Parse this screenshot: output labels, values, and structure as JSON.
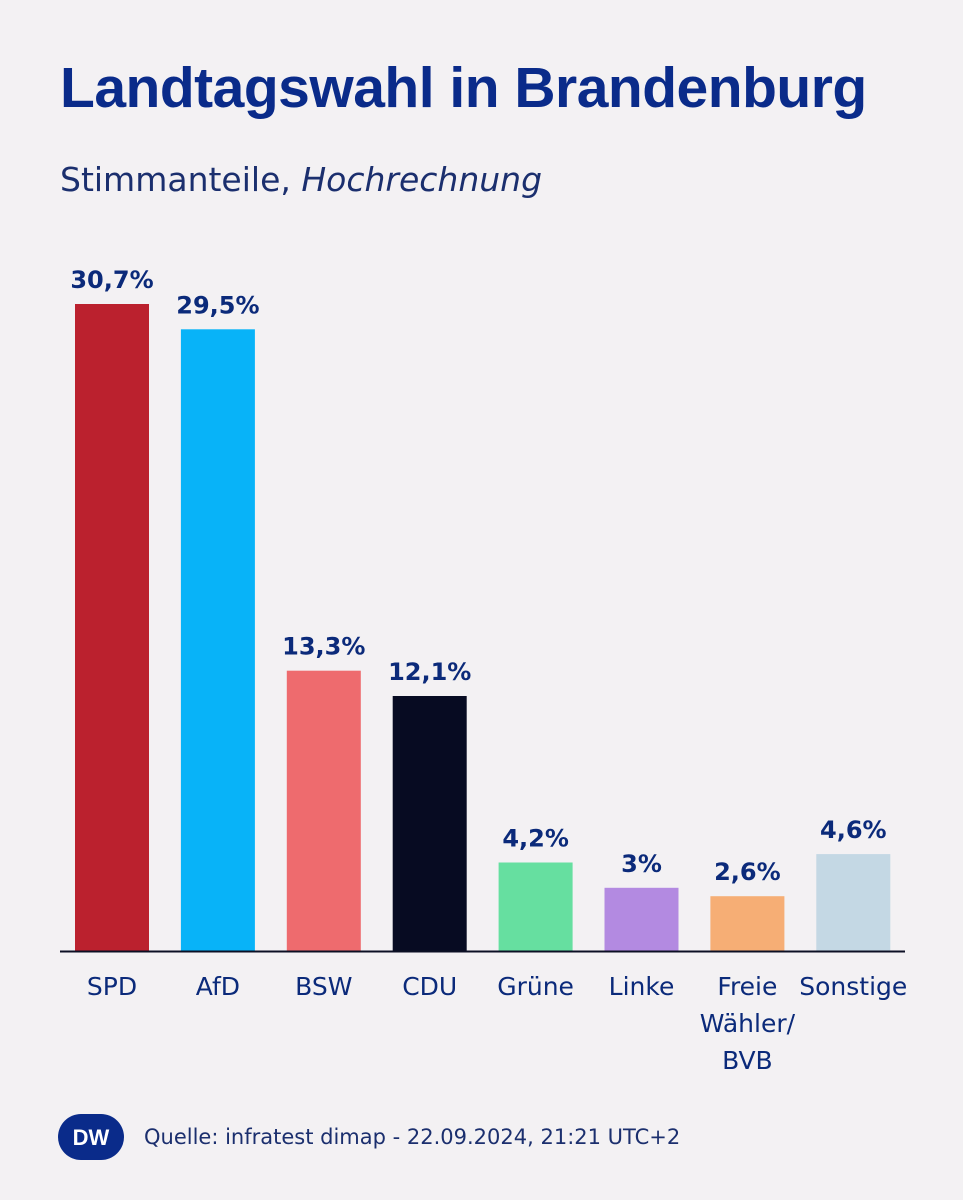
{
  "title": "Landtagswahl in Brandenburg",
  "subtitle": {
    "regular": "Stimmanteile, ",
    "italic": "Hochrechnung"
  },
  "logo": "DW",
  "source": "Quelle: infratest dimap - 22.09.2024, 21:21 UTC+2",
  "colors": {
    "background": "#f3f1f3",
    "text": "#0b2a7a",
    "axis": "#0c1024"
  },
  "chart_data": {
    "type": "bar",
    "title": "Landtagswahl in Brandenburg",
    "subtitle": "Stimmanteile, Hochrechnung",
    "categories": [
      "SPD",
      "AfD",
      "BSW",
      "CDU",
      "Grüne",
      "Linke",
      "Freie Wähler/ BVB",
      "Sonstige"
    ],
    "category_lines": [
      [
        "SPD"
      ],
      [
        "AfD"
      ],
      [
        "BSW"
      ],
      [
        "CDU"
      ],
      [
        "Grüne"
      ],
      [
        "Linke"
      ],
      [
        "Freie",
        "Wähler/",
        "BVB"
      ],
      [
        "Sonstige"
      ]
    ],
    "values": [
      30.7,
      29.5,
      13.3,
      12.1,
      4.2,
      3,
      2.6,
      4.6
    ],
    "value_labels": [
      "30,7%",
      "29,5%",
      "13,3%",
      "12,1%",
      "4,2%",
      "3%",
      "2,6%",
      "4,6%"
    ],
    "colors": [
      "#bb212e",
      "#08b3f8",
      "#ee6b6e",
      "#070b22",
      "#66dfa0",
      "#b38ae1",
      "#f6ae75",
      "#c4d8e4"
    ],
    "xlabel": "",
    "ylabel": "",
    "grid": false,
    "legend": "none"
  }
}
